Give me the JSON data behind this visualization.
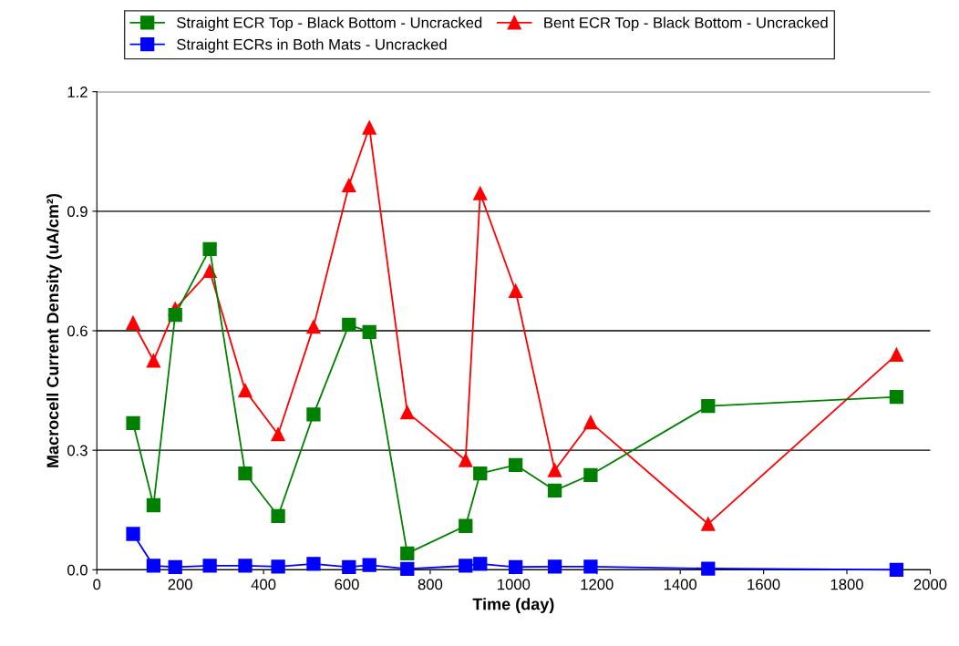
{
  "chart_data": {
    "type": "line",
    "xlabel": "Time (day)",
    "ylabel": "Macrocell Current Density (uA/cm²)",
    "x": [
      87,
      136,
      188,
      271,
      356,
      435,
      520,
      605,
      654,
      745,
      885,
      920,
      1005,
      1099,
      1185,
      1467,
      1919
    ],
    "xlim": [
      0,
      2000
    ],
    "xticks": [
      0,
      200,
      400,
      600,
      800,
      1000,
      1200,
      1400,
      1600,
      1800,
      2000
    ],
    "ylim": [
      0,
      1.2
    ],
    "yticks": [
      {
        "value": 0,
        "label": "0.0"
      },
      {
        "value": 0.3,
        "label": "0.3"
      },
      {
        "value": 0.6,
        "label": "0.6"
      },
      {
        "value": 0.9,
        "label": "0.9"
      },
      {
        "value": 1.2,
        "label": "1.2"
      }
    ],
    "grid": "y",
    "legend": "top",
    "line_style": "solid",
    "series": [
      {
        "name": "Straight ECR Top - Black Bottom - Uncracked",
        "color": "#008000",
        "marker": "square",
        "values": [
          0.368,
          0.162,
          0.64,
          0.805,
          0.242,
          0.135,
          0.39,
          0.615,
          0.597,
          0.041,
          0.11,
          0.242,
          0.263,
          0.199,
          0.238,
          0.411,
          0.434
        ]
      },
      {
        "name": "Straight ECRs in Both Mats - Uncracked",
        "color": "#0000ff",
        "marker": "square",
        "values": [
          0.09,
          0.01,
          0.007,
          0.01,
          0.01,
          0.008,
          0.015,
          0.007,
          0.012,
          0.002,
          0.01,
          0.015,
          0.007,
          0.008,
          0.008,
          0.003,
          0.0
        ]
      },
      {
        "name": "Bent ECR Top - Black Bottom - Uncracked",
        "color": "#ff0000",
        "marker": "triangle",
        "values": [
          0.62,
          0.525,
          0.655,
          0.75,
          0.45,
          0.34,
          0.61,
          0.965,
          1.11,
          0.395,
          0.275,
          0.945,
          0.7,
          0.25,
          0.37,
          0.115,
          0.54
        ]
      }
    ]
  }
}
